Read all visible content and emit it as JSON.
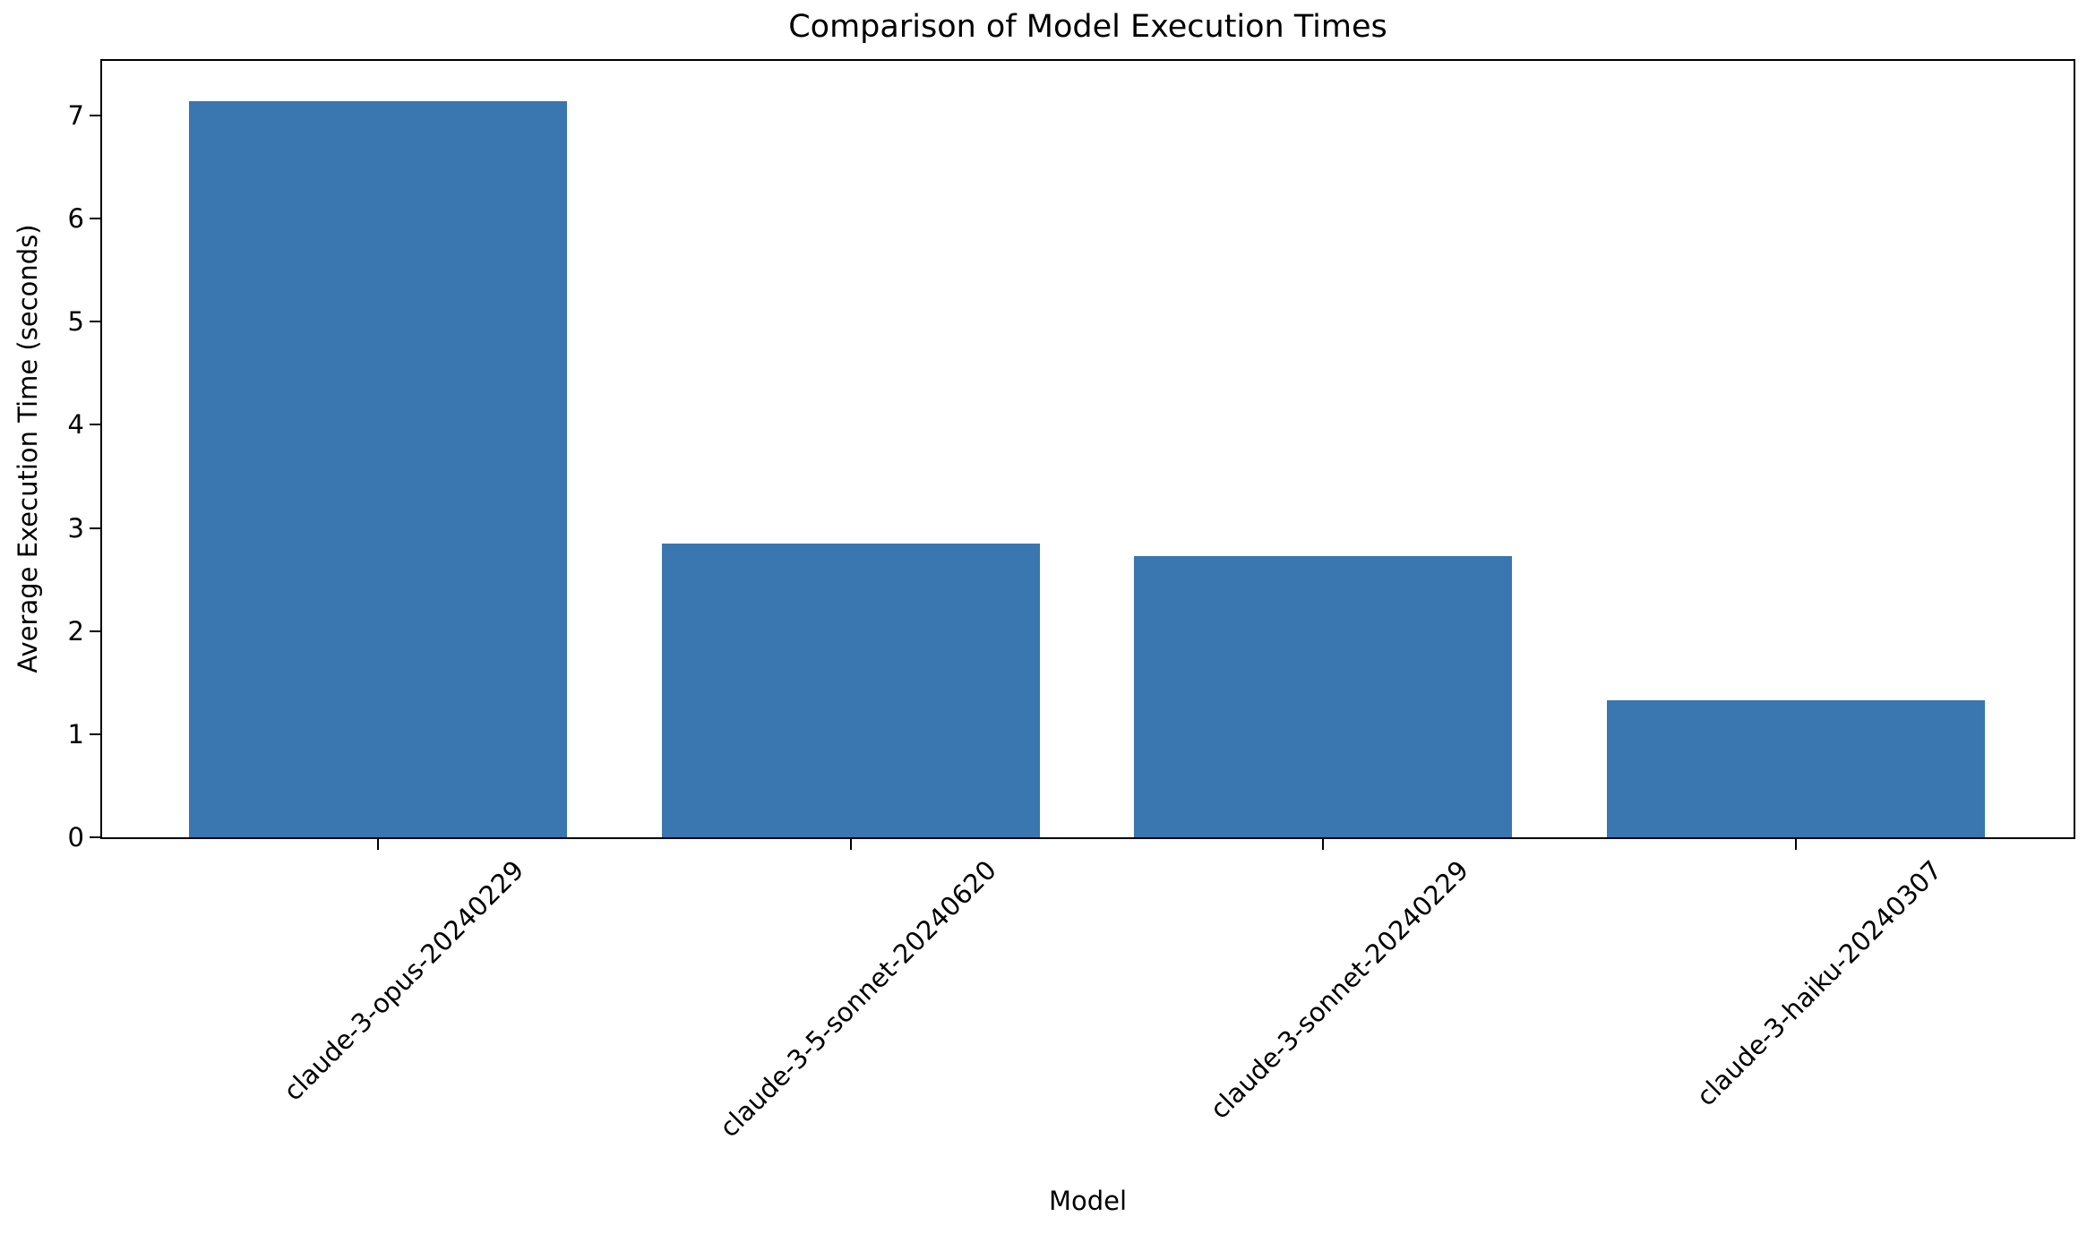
{
  "chart_data": {
    "type": "bar",
    "title": "Comparison of Model Execution Times",
    "xlabel": "Model",
    "ylabel": "Average Execution Time (seconds)",
    "categories": [
      "claude-3-opus-20240229",
      "claude-3-5-sonnet-20240620",
      "claude-3-sonnet-20240229",
      "claude-3-haiku-20240307"
    ],
    "values": [
      7.14,
      2.85,
      2.73,
      1.33
    ],
    "yticks": [
      0,
      1,
      2,
      3,
      4,
      5,
      6,
      7
    ],
    "ylim": [
      0,
      7.53
    ],
    "x_tick_rotation_deg": 45,
    "grid": false,
    "legend": false,
    "bar_color": "#3a76af",
    "axis_color": "#000000",
    "text_color": "#000000",
    "background_color": "#ffffff"
  }
}
